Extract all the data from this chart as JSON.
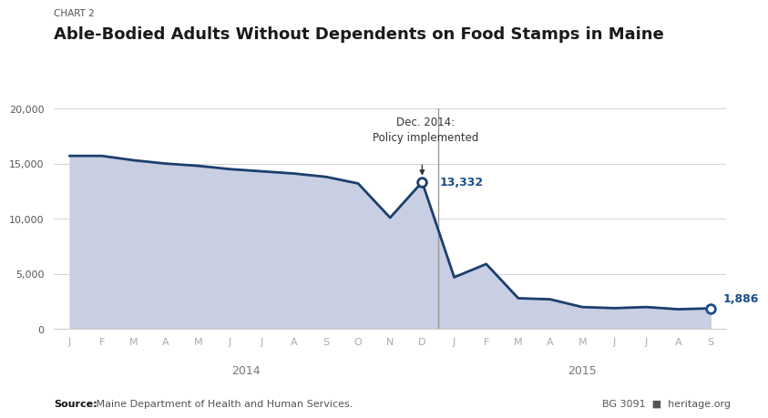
{
  "chart_label": "CHART 2",
  "title": "Able-Bodied Adults Without Dependents on Food Stamps in Maine",
  "x_labels_2014": [
    "J",
    "F",
    "M",
    "A",
    "M",
    "J",
    "J",
    "A",
    "S",
    "O",
    "N",
    "D"
  ],
  "x_labels_2015": [
    "J",
    "F",
    "M",
    "A",
    "M",
    "J",
    "J",
    "A",
    "S"
  ],
  "values": [
    15700,
    15700,
    15300,
    15000,
    14800,
    14500,
    14300,
    14100,
    13800,
    13200,
    10100,
    13332,
    4700,
    5900,
    2800,
    2700,
    2000,
    1900,
    2000,
    1800,
    1886
  ],
  "highlight_idx_dec2014": 11,
  "highlight_idx_sep2015": 20,
  "highlight_value_dec": 13332,
  "highlight_value_sep": 1886,
  "annotation_text": "Dec. 2014:\nPolicy implemented",
  "ylim": [
    0,
    20000
  ],
  "yticks": [
    0,
    5000,
    10000,
    15000,
    20000
  ],
  "line_color": "#1b3f6e",
  "fill_color": "#c8cfe3",
  "highlight_color": "#1b4f8a",
  "source_bold": "Source:",
  "source_detail": " Maine Department of Health and Human Services.",
  "bg_ref": "BG 3091",
  "website": "heritage.org",
  "background_color": "#ffffff",
  "grid_color": "#cccccc",
  "divider_color": "#999999",
  "tick_color": "#aaaaaa",
  "year_color": "#777777",
  "title_color": "#1a1a1a",
  "chart_label_color": "#555555",
  "annotation_color": "#333333"
}
